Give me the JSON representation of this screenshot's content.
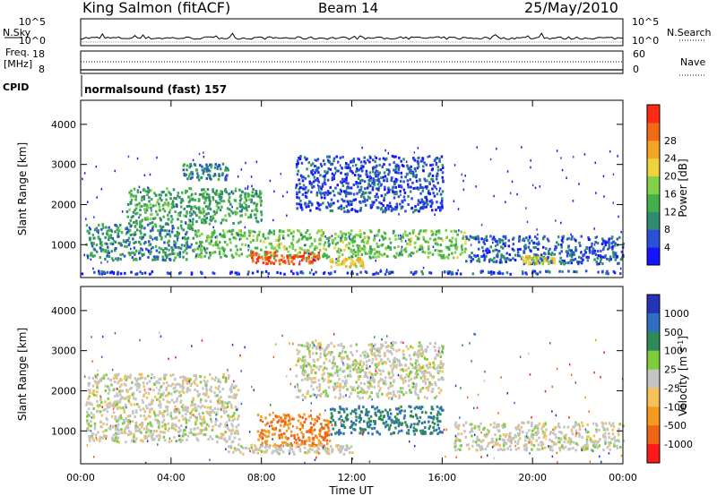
{
  "header": {
    "station": "King Salmon (fitACF)",
    "beam": "Beam 14",
    "date": "25/May/2010"
  },
  "noise_panel": {
    "left_label": "N.Sky",
    "right_label": "N.Search",
    "ticks": [
      "10^5",
      "10^0"
    ]
  },
  "freq_panel": {
    "left_label_1": "Freq.",
    "left_label_2": "[MHz]",
    "left_ticks": [
      "18",
      "8"
    ],
    "right_label": "Nave",
    "right_ticks": [
      "60",
      "0"
    ]
  },
  "cpid": {
    "label": "CPID",
    "text": "normalsound (fast) 157"
  },
  "colors": {
    "power": [
      "#1414ff",
      "#2b4fd6",
      "#2f8c6e",
      "#44b04a",
      "#7fd24a",
      "#f0d23c",
      "#f5a524",
      "#f06a18",
      "#ff2a14"
    ],
    "velocity": [
      "#2433b8",
      "#2f6fc0",
      "#2e8b57",
      "#7ccc3c",
      "#c4c4c4",
      "#f5c25a",
      "#f59a1e",
      "#f06418",
      "#ff1a1a"
    ]
  },
  "chart_data": [
    {
      "type": "heatmap",
      "quantity": "Power",
      "xlabel": "",
      "ylabel": "Slant Range [km]",
      "xlim": [
        "00:00",
        "24:00"
      ],
      "ylim": [
        180,
        4600
      ],
      "yticks": [
        "1000",
        "2000",
        "3000",
        "4000"
      ],
      "colorbar": {
        "label": "Power [dB]",
        "ticks": [
          "4",
          "8",
          "12",
          "16",
          "20",
          "24",
          "28"
        ],
        "range": [
          0,
          31
        ]
      },
      "regions": [
        {
          "t0": 0.0,
          "t1": 24.0,
          "r0": 250,
          "r1": 330,
          "level": 4
        },
        {
          "t0": 0.2,
          "t1": 5.0,
          "r0": 600,
          "r1": 1500,
          "level": 9
        },
        {
          "t0": 5.0,
          "t1": 17.0,
          "r0": 650,
          "r1": 1350,
          "level": 14
        },
        {
          "t0": 7.5,
          "t1": 10.5,
          "r0": 500,
          "r1": 800,
          "level": 28
        },
        {
          "t0": 11.0,
          "t1": 12.5,
          "r0": 400,
          "r1": 650,
          "level": 20
        },
        {
          "t0": 2.0,
          "t1": 8.0,
          "r0": 1500,
          "r1": 2400,
          "level": 11
        },
        {
          "t0": 9.5,
          "t1": 16.0,
          "r0": 1800,
          "r1": 3200,
          "level": 5
        },
        {
          "t0": 4.5,
          "t1": 6.5,
          "r0": 2600,
          "r1": 3000,
          "level": 8
        },
        {
          "t0": 17.0,
          "t1": 24.0,
          "r0": 500,
          "r1": 1200,
          "level": 6
        },
        {
          "t0": 19.5,
          "t1": 21.0,
          "r0": 500,
          "r1": 700,
          "level": 18
        }
      ]
    },
    {
      "type": "heatmap",
      "quantity": "Velocity",
      "xlabel": "Time UT",
      "ylabel": "Slant Range [km]",
      "xlim": [
        "00:00",
        "24:00"
      ],
      "ylim": [
        180,
        4600
      ],
      "xticks": [
        "00:00",
        "04:00",
        "08:00",
        "12:00",
        "16:00",
        "20:00",
        "00:00"
      ],
      "yticks": [
        "1000",
        "2000",
        "3000",
        "4000"
      ],
      "colorbar": {
        "label": "Velocity [m s^-1]",
        "ticks": [
          "1000",
          "500",
          "100",
          "25",
          "-25",
          "-100",
          "-500",
          "-1000"
        ]
      },
      "regions": [
        {
          "t0": 0.2,
          "t1": 7.0,
          "r0": 700,
          "r1": 2400,
          "value": 0
        },
        {
          "t0": 7.8,
          "t1": 11.0,
          "r0": 600,
          "r1": 1400,
          "value": -300
        },
        {
          "t0": 11.0,
          "t1": 16.0,
          "r0": 900,
          "r1": 1600,
          "value": 300
        },
        {
          "t0": 9.5,
          "t1": 16.0,
          "r0": 1800,
          "r1": 3200,
          "value": 0
        },
        {
          "t0": 16.5,
          "t1": 24.0,
          "r0": 500,
          "r1": 1200,
          "value": 0
        },
        {
          "t0": 6.5,
          "t1": 12.0,
          "r0": 400,
          "r1": 650,
          "value": 0
        }
      ]
    }
  ]
}
